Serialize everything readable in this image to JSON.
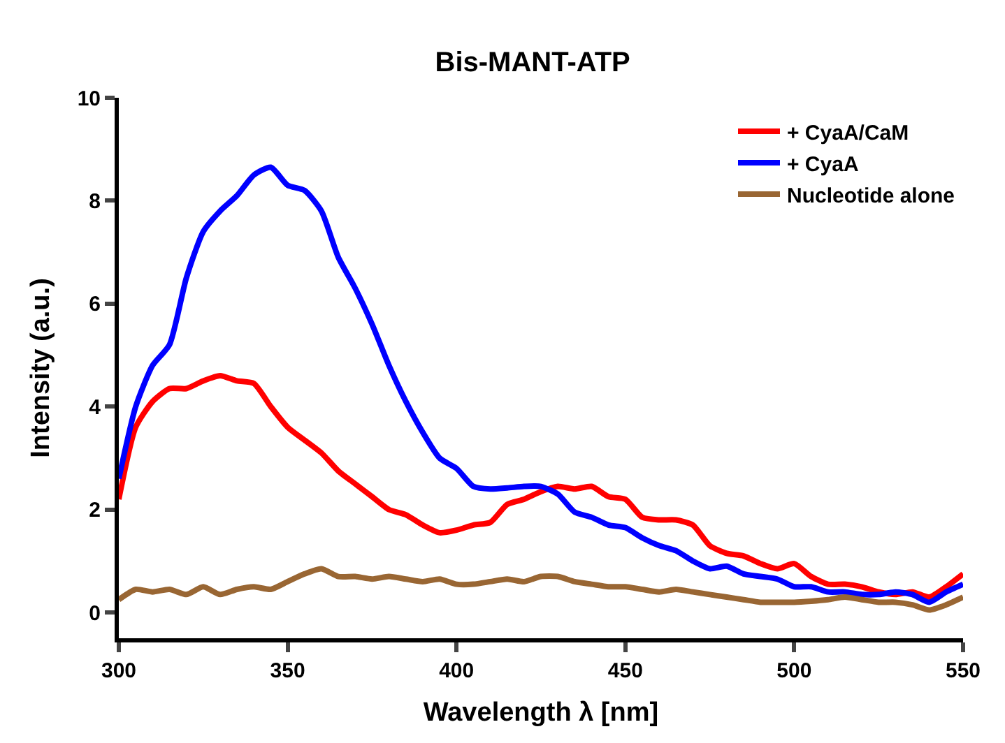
{
  "chart_data": {
    "type": "line",
    "title": "Bis-MANT-ATP",
    "xlabel": "Wavelength λ [nm]",
    "ylabel": "Intensity (a.u.)",
    "x": [
      300,
      305,
      310,
      315,
      320,
      325,
      330,
      335,
      340,
      345,
      350,
      355,
      360,
      365,
      370,
      375,
      380,
      385,
      390,
      395,
      400,
      405,
      410,
      415,
      420,
      425,
      430,
      435,
      440,
      445,
      450,
      455,
      460,
      465,
      470,
      475,
      480,
      485,
      490,
      495,
      500,
      505,
      510,
      515,
      520,
      525,
      530,
      535,
      540,
      545,
      550
    ],
    "series": [
      {
        "name": "+ CyaA/CaM",
        "color": "#ff0000",
        "values": [
          2.2,
          3.6,
          4.1,
          4.35,
          4.35,
          4.5,
          4.6,
          4.5,
          4.45,
          4.0,
          3.6,
          3.35,
          3.1,
          2.75,
          2.5,
          2.25,
          2.0,
          1.9,
          1.7,
          1.55,
          1.6,
          1.7,
          1.75,
          2.1,
          2.2,
          2.35,
          2.45,
          2.4,
          2.45,
          2.25,
          2.2,
          1.85,
          1.8,
          1.8,
          1.7,
          1.3,
          1.15,
          1.1,
          0.95,
          0.85,
          0.95,
          0.7,
          0.55,
          0.55,
          0.5,
          0.4,
          0.35,
          0.4,
          0.3,
          0.5,
          0.75
        ]
      },
      {
        "name": "+ CyaA",
        "color": "#0000ff",
        "values": [
          2.6,
          4.0,
          4.8,
          5.2,
          6.5,
          7.4,
          7.8,
          8.1,
          8.5,
          8.65,
          8.3,
          8.2,
          7.8,
          6.9,
          6.3,
          5.6,
          4.8,
          4.1,
          3.5,
          3.0,
          2.8,
          2.45,
          2.4,
          2.42,
          2.45,
          2.45,
          2.3,
          1.95,
          1.85,
          1.7,
          1.65,
          1.45,
          1.3,
          1.2,
          1.0,
          0.85,
          0.9,
          0.75,
          0.7,
          0.65,
          0.5,
          0.5,
          0.4,
          0.4,
          0.35,
          0.35,
          0.4,
          0.35,
          0.2,
          0.4,
          0.55
        ]
      },
      {
        "name": "Nucleotide alone",
        "color": "#996633",
        "values": [
          0.25,
          0.45,
          0.4,
          0.45,
          0.35,
          0.5,
          0.35,
          0.45,
          0.5,
          0.45,
          0.6,
          0.75,
          0.85,
          0.7,
          0.7,
          0.65,
          0.7,
          0.65,
          0.6,
          0.65,
          0.55,
          0.55,
          0.6,
          0.65,
          0.6,
          0.7,
          0.7,
          0.6,
          0.55,
          0.5,
          0.5,
          0.45,
          0.4,
          0.45,
          0.4,
          0.35,
          0.3,
          0.25,
          0.2,
          0.2,
          0.2,
          0.22,
          0.25,
          0.3,
          0.25,
          0.2,
          0.2,
          0.15,
          0.05,
          0.15,
          0.3
        ]
      }
    ],
    "xlim": [
      300,
      550
    ],
    "xticks": [
      300,
      350,
      400,
      450,
      500,
      550
    ],
    "ylim": [
      -0.5,
      10
    ],
    "yticks": [
      0,
      2,
      4,
      6,
      8,
      10
    ],
    "legend": "top right",
    "marker": "none",
    "line_style": "solid"
  }
}
